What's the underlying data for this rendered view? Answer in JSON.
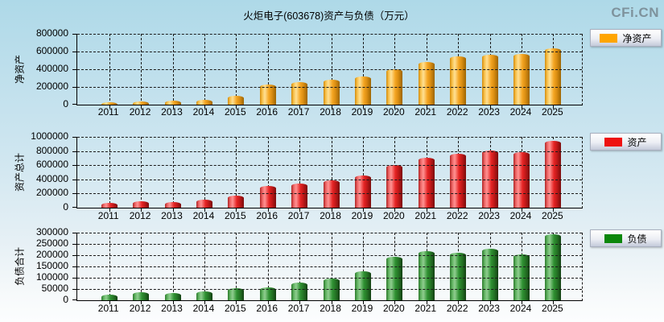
{
  "page": {
    "title": "火炬电子(603678)资产与负债（万元）",
    "watermark": "CFi.CN"
  },
  "chart_data": [
    {
      "type": "bar",
      "ylabel": "净资产",
      "legend": "净资产",
      "color": "#FFA500",
      "categories": [
        "2011",
        "2012",
        "2013",
        "2014",
        "2015",
        "2016",
        "2017",
        "2018",
        "2019",
        "2020",
        "2021",
        "2022",
        "2023",
        "2024",
        "2025"
      ],
      "values": [
        25000,
        33000,
        43000,
        58000,
        100000,
        230000,
        258000,
        281000,
        315000,
        400000,
        481000,
        542000,
        561000,
        570000,
        636000
      ],
      "ylim": [
        0,
        800000
      ],
      "ytick_step": 200000,
      "grid": true,
      "legend_position": "top-right"
    },
    {
      "type": "bar",
      "ylabel": "资产总计",
      "legend": "资产",
      "color": "#EE1111",
      "categories": [
        "2011",
        "2012",
        "2013",
        "2014",
        "2015",
        "2016",
        "2017",
        "2018",
        "2019",
        "2020",
        "2021",
        "2022",
        "2023",
        "2024",
        "2025"
      ],
      "values": [
        68000,
        91000,
        85000,
        114000,
        167000,
        303000,
        341000,
        386000,
        458000,
        606000,
        705000,
        758000,
        810000,
        784000,
        947000
      ],
      "ylim": [
        0,
        1000000
      ],
      "ytick_step": 200000,
      "grid": true,
      "legend_position": "top-right"
    },
    {
      "type": "bar",
      "ylabel": "负债合计",
      "legend": "负债",
      "color": "#0C870C",
      "categories": [
        "2011",
        "2012",
        "2013",
        "2014",
        "2015",
        "2016",
        "2017",
        "2018",
        "2019",
        "2020",
        "2021",
        "2022",
        "2023",
        "2024",
        "2025"
      ],
      "values": [
        26000,
        36000,
        33000,
        40000,
        55000,
        58000,
        80000,
        95000,
        129000,
        194000,
        218000,
        211000,
        229000,
        204000,
        292000
      ],
      "ylim": [
        0,
        300000
      ],
      "ytick_step": 50000,
      "grid": true,
      "legend_position": "top-right"
    }
  ]
}
